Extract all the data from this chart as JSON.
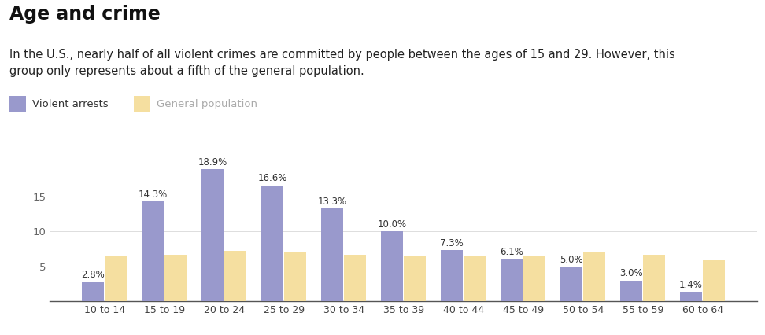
{
  "title": "Age and crime",
  "subtitle": "In the U.S., nearly half of all violent crimes are committed by people between the ages of 15 and 29. However, this\ngroup only represents about a fifth of the general population.",
  "categories": [
    "10 to 14",
    "15 to 19",
    "20 to 24",
    "25 to 29",
    "30 to 34",
    "35 to 39",
    "40 to 44",
    "45 to 49",
    "50 to 54",
    "55 to 59",
    "60 to 64"
  ],
  "violent_arrests": [
    2.8,
    14.3,
    18.9,
    16.6,
    13.3,
    10.0,
    7.3,
    6.1,
    5.0,
    3.0,
    1.4
  ],
  "general_population": [
    6.5,
    6.7,
    7.2,
    7.0,
    6.7,
    6.5,
    6.5,
    6.5,
    7.0,
    6.7,
    6.0
  ],
  "violent_color": "#9999cc",
  "population_color": "#f5dfa0",
  "background_color": "#ffffff",
  "title_fontsize": 17,
  "subtitle_fontsize": 10.5,
  "legend_labels": [
    "Violent arrests",
    "General population"
  ],
  "ylabel_ticks": [
    5,
    10,
    15
  ],
  "ylim": [
    0,
    22
  ]
}
